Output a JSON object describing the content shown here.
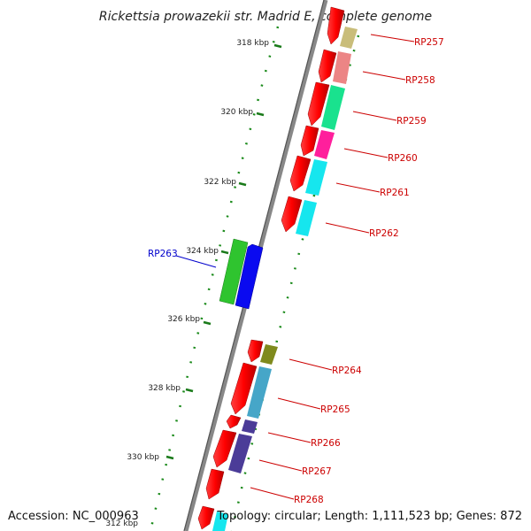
{
  "title": "Rickettsia prowazekii str. Madrid E, complete genome",
  "footer": {
    "accession": "Accession: NC_000963",
    "summary": "Topology: circular; Length: 1,111,523 bp; Genes: 872"
  },
  "ticks": [
    "312 kbp",
    "318 kbp",
    "320 kbp",
    "322 kbp",
    "324 kbp",
    "326 kbp",
    "328 kbp",
    "330 kbp"
  ],
  "genes": [
    {
      "label": "RP257",
      "color": "#cc0000"
    },
    {
      "label": "RP258",
      "color": "#cc0000"
    },
    {
      "label": "RP259",
      "color": "#cc0000"
    },
    {
      "label": "RP260",
      "color": "#cc0000"
    },
    {
      "label": "RP261",
      "color": "#cc0000"
    },
    {
      "label": "RP262",
      "color": "#cc0000"
    },
    {
      "label": "RP263",
      "color": "#0000cc"
    },
    {
      "label": "RP264",
      "color": "#cc0000"
    },
    {
      "label": "RP265",
      "color": "#cc0000"
    },
    {
      "label": "RP266",
      "color": "#cc0000"
    },
    {
      "label": "RP267",
      "color": "#cc0000"
    },
    {
      "label": "RP268",
      "color": "#cc0000"
    }
  ],
  "colors": {
    "backbone": "#777777",
    "ticks": "#1a7a1a",
    "cds_forward": "#ff0000",
    "cds_reverse": "#0000ff"
  }
}
